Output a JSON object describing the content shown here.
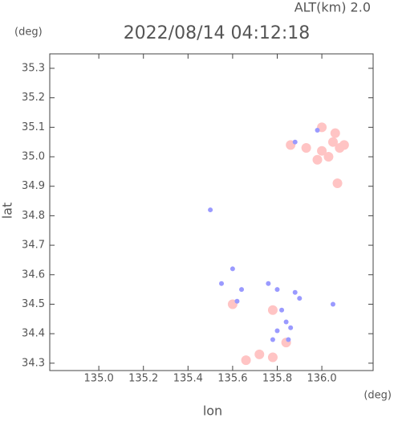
{
  "chart_data": {
    "type": "scatter",
    "title": "2022/08/14 04:12:18",
    "altitude_label": "ALT(km)  2.0",
    "y_unit": "(deg)",
    "x_unit": "(deg)",
    "xlabel": "lon",
    "ylabel": "lat",
    "xlim": [
      134.78,
      136.23
    ],
    "ylim": [
      34.275,
      35.349
    ],
    "xticks": [
      {
        "value": 135,
        "label": "135.0"
      },
      135.2,
      135.4,
      135.6,
      135.8,
      {
        "value": 136,
        "label": "136.0"
      }
    ],
    "yticks": [
      34.3,
      34.4,
      34.5,
      34.6,
      34.7,
      34.8,
      34.9,
      {
        "value": 35,
        "label": "35.0"
      },
      35.1,
      35.2,
      35.3
    ],
    "series": [
      {
        "color": "#ffc4c4",
        "x": [
          136.05,
          136.08,
          136.03,
          136.1,
          136.06,
          136.0,
          135.98,
          136.07,
          136.0,
          135.93,
          135.86,
          135.78,
          135.72,
          135.78,
          135.66,
          135.84,
          135.6
        ],
        "y": [
          35.05,
          35.03,
          35.0,
          35.04,
          35.08,
          35.02,
          34.99,
          34.91,
          35.1,
          35.03,
          35.04,
          34.48,
          34.33,
          34.32,
          34.31,
          34.37,
          34.5
        ]
      },
      {
        "color": "#9a9aff",
        "x": [
          135.5,
          135.6,
          135.55,
          135.64,
          135.76,
          135.8,
          135.88,
          135.9,
          135.82,
          135.84,
          135.8,
          135.86,
          135.78,
          135.85,
          135.62,
          136.05,
          135.98,
          135.88
        ],
        "y": [
          34.82,
          34.62,
          34.57,
          34.55,
          34.57,
          34.55,
          34.54,
          34.52,
          34.48,
          34.44,
          34.41,
          34.42,
          34.38,
          34.38,
          34.51,
          34.5,
          35.09,
          35.05
        ]
      }
    ]
  }
}
